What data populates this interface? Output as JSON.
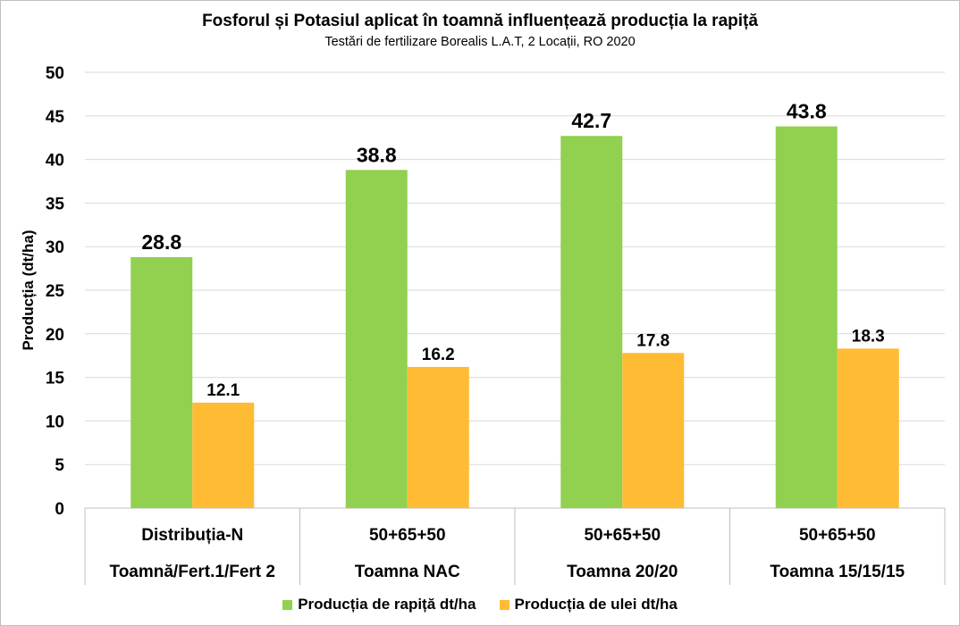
{
  "chart_data": {
    "type": "bar",
    "title": "Fosforul și Potasiul aplicat în toamnă influențează producția la rapiță",
    "subtitle": "Testări de fertilizare Borealis L.A.T, 2 Locații, RO 2020",
    "ylabel": "Producția (dt/ha)",
    "ylim": [
      0,
      50
    ],
    "yticks": [
      "0",
      "5",
      "10",
      "15",
      "20",
      "25",
      "30",
      "35",
      "40",
      "45",
      "50"
    ],
    "grid": true,
    "legend_position": "bottom",
    "categories": [
      {
        "line1": "Distribuția-N",
        "line2": "Toamnă/Fert.1/Fert 2"
      },
      {
        "line1": "50+65+50",
        "line2": "Toamna NAC"
      },
      {
        "line1": "50+65+50",
        "line2": "Toamna 20/20"
      },
      {
        "line1": "50+65+50",
        "line2": "Toamna 15/15/15"
      }
    ],
    "series": [
      {
        "name": "Producția de rapiță dt/ha",
        "color": "#92d050",
        "values": [
          28.8,
          38.8,
          42.7,
          43.8
        ],
        "labels": [
          "28.8",
          "38.8",
          "42.7",
          "43.8"
        ]
      },
      {
        "name": "Producția de ulei dt/ha",
        "color": "#ffbb33",
        "values": [
          12.1,
          16.2,
          17.8,
          18.3
        ],
        "labels": [
          "12.1",
          "16.2",
          "17.8",
          "18.3"
        ]
      }
    ]
  }
}
